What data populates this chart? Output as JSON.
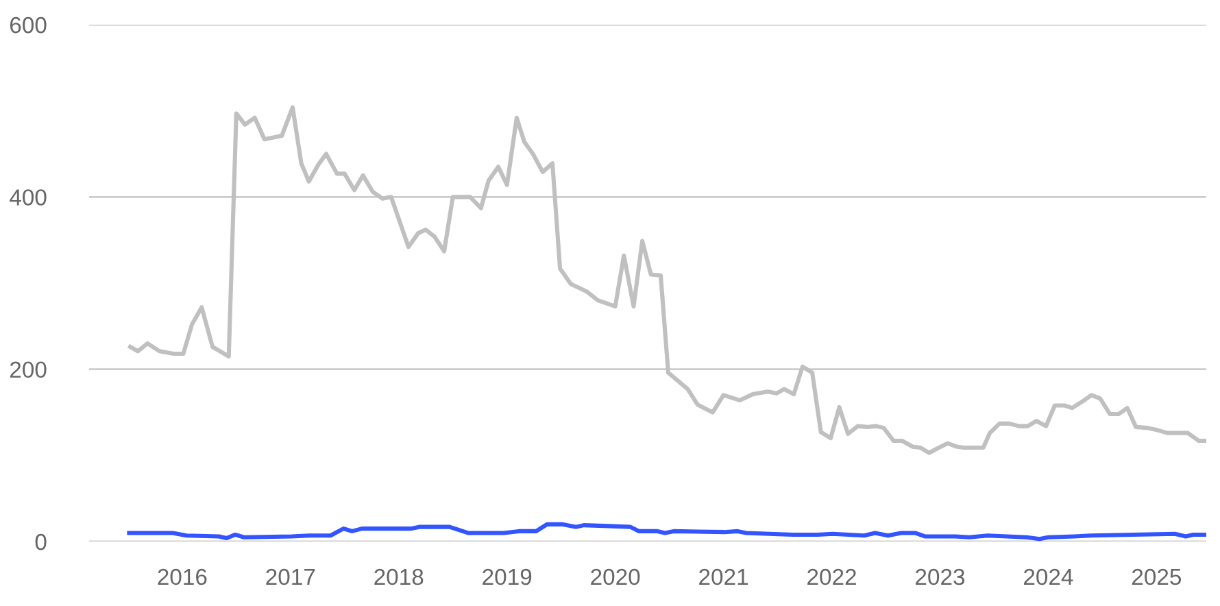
{
  "chart_data": {
    "type": "line",
    "series": [
      {
        "color": "#c0c0c0",
        "x": [
          2015.52,
          2015.59,
          2015.68,
          2015.79,
          2015.92,
          2016.01,
          2016.09,
          2016.18,
          2016.28,
          2016.43,
          2016.5,
          2016.58,
          2016.67,
          2016.76,
          2016.92,
          2017.02,
          2017.1,
          2017.17,
          2017.26,
          2017.33,
          2017.43,
          2017.5,
          2017.59,
          2017.67,
          2017.76,
          2017.85,
          2017.93,
          2018.09,
          2018.18,
          2018.25,
          2018.33,
          2018.42,
          2018.5,
          2018.66,
          2018.76,
          2018.83,
          2018.92,
          2019.0,
          2019.09,
          2019.16,
          2019.24,
          2019.33,
          2019.42,
          2019.49,
          2019.59,
          2019.74,
          2019.84,
          2020.0,
          2020.08,
          2020.17,
          2020.25,
          2020.33,
          2020.42,
          2020.49,
          2020.67,
          2020.76,
          2020.9,
          2021.0,
          2021.15,
          2021.27,
          2021.41,
          2021.49,
          2021.56,
          2021.65,
          2021.73,
          2021.82,
          2021.9,
          2021.99,
          2022.07,
          2022.15,
          2022.24,
          2022.33,
          2022.41,
          2022.48,
          2022.57,
          2022.65,
          2022.75,
          2022.82,
          2022.9,
          2022.99,
          2023.07,
          2023.16,
          2023.22,
          2023.4,
          2023.46,
          2023.55,
          2023.64,
          2023.73,
          2023.81,
          2023.89,
          2023.98,
          2024.06,
          2024.15,
          2024.22,
          2024.32,
          2024.4,
          2024.48,
          2024.57,
          2024.65,
          2024.73,
          2024.81,
          2024.91,
          2024.99,
          2025.1,
          2025.19,
          2025.29,
          2025.39,
          2025.46
        ],
        "values": [
          226,
          221,
          230,
          221,
          218,
          218,
          252,
          272,
          226,
          215,
          497,
          484,
          492,
          467,
          471,
          504,
          439,
          418,
          438,
          450,
          427,
          427,
          408,
          425,
          406,
          398,
          400,
          342,
          358,
          362,
          354,
          337,
          400,
          400,
          387,
          419,
          435,
          414,
          492,
          464,
          450,
          429,
          439,
          317,
          299,
          290,
          280,
          273,
          332,
          273,
          349,
          310,
          309,
          196,
          177,
          159,
          150,
          170,
          164,
          171,
          174,
          172,
          177,
          171,
          203,
          196,
          127,
          120,
          156,
          125,
          134,
          133,
          134,
          132,
          117,
          117,
          110,
          109,
          103,
          109,
          114,
          110,
          109,
          109,
          126,
          137,
          137,
          134,
          134,
          140,
          134,
          158,
          158,
          155,
          163,
          170,
          166,
          148,
          148,
          155,
          133,
          132,
          130,
          126,
          126,
          126,
          117,
          117
        ]
      },
      {
        "color": "#3355ff",
        "x": [
          2015.51,
          2015.91,
          2016.04,
          2016.34,
          2016.41,
          2016.49,
          2016.57,
          2017.01,
          2017.17,
          2017.37,
          2017.49,
          2017.57,
          2017.66,
          2018.11,
          2018.19,
          2018.47,
          2018.64,
          2018.97,
          2019.11,
          2019.27,
          2019.37,
          2019.51,
          2019.64,
          2019.71,
          2019.94,
          2020.14,
          2020.22,
          2020.39,
          2020.46,
          2020.54,
          2021.01,
          2021.13,
          2021.21,
          2021.64,
          2021.87,
          2022.01,
          2022.3,
          2022.4,
          2022.52,
          2022.64,
          2022.77,
          2022.86,
          2023.14,
          2023.27,
          2023.44,
          2023.8,
          2023.92,
          2024.0,
          2024.24,
          2024.39,
          2025.17,
          2025.27,
          2025.34,
          2025.4,
          2025.46
        ],
        "values": [
          10,
          10,
          7,
          6,
          4,
          8,
          5,
          6,
          7,
          7,
          15,
          12,
          15,
          15,
          17,
          17,
          10,
          10,
          12,
          12,
          20,
          20,
          17,
          19,
          18,
          17,
          12,
          12,
          10,
          12,
          11,
          12,
          10,
          8,
          8,
          9,
          7,
          10,
          7,
          10,
          10,
          6,
          6,
          5,
          7,
          5,
          3,
          5,
          6,
          7,
          9,
          6,
          8,
          8,
          8
        ]
      }
    ],
    "xlim": [
      2015.14,
      2025.46
    ],
    "xticks": [
      2016,
      2017,
      2018,
      2019,
      2020,
      2021,
      2022,
      2023,
      2024,
      2025
    ],
    "ylim": [
      0,
      600
    ],
    "yticks": [
      0,
      200,
      400,
      600
    ],
    "grid": "y",
    "marker": "none",
    "line_style": "solid"
  }
}
